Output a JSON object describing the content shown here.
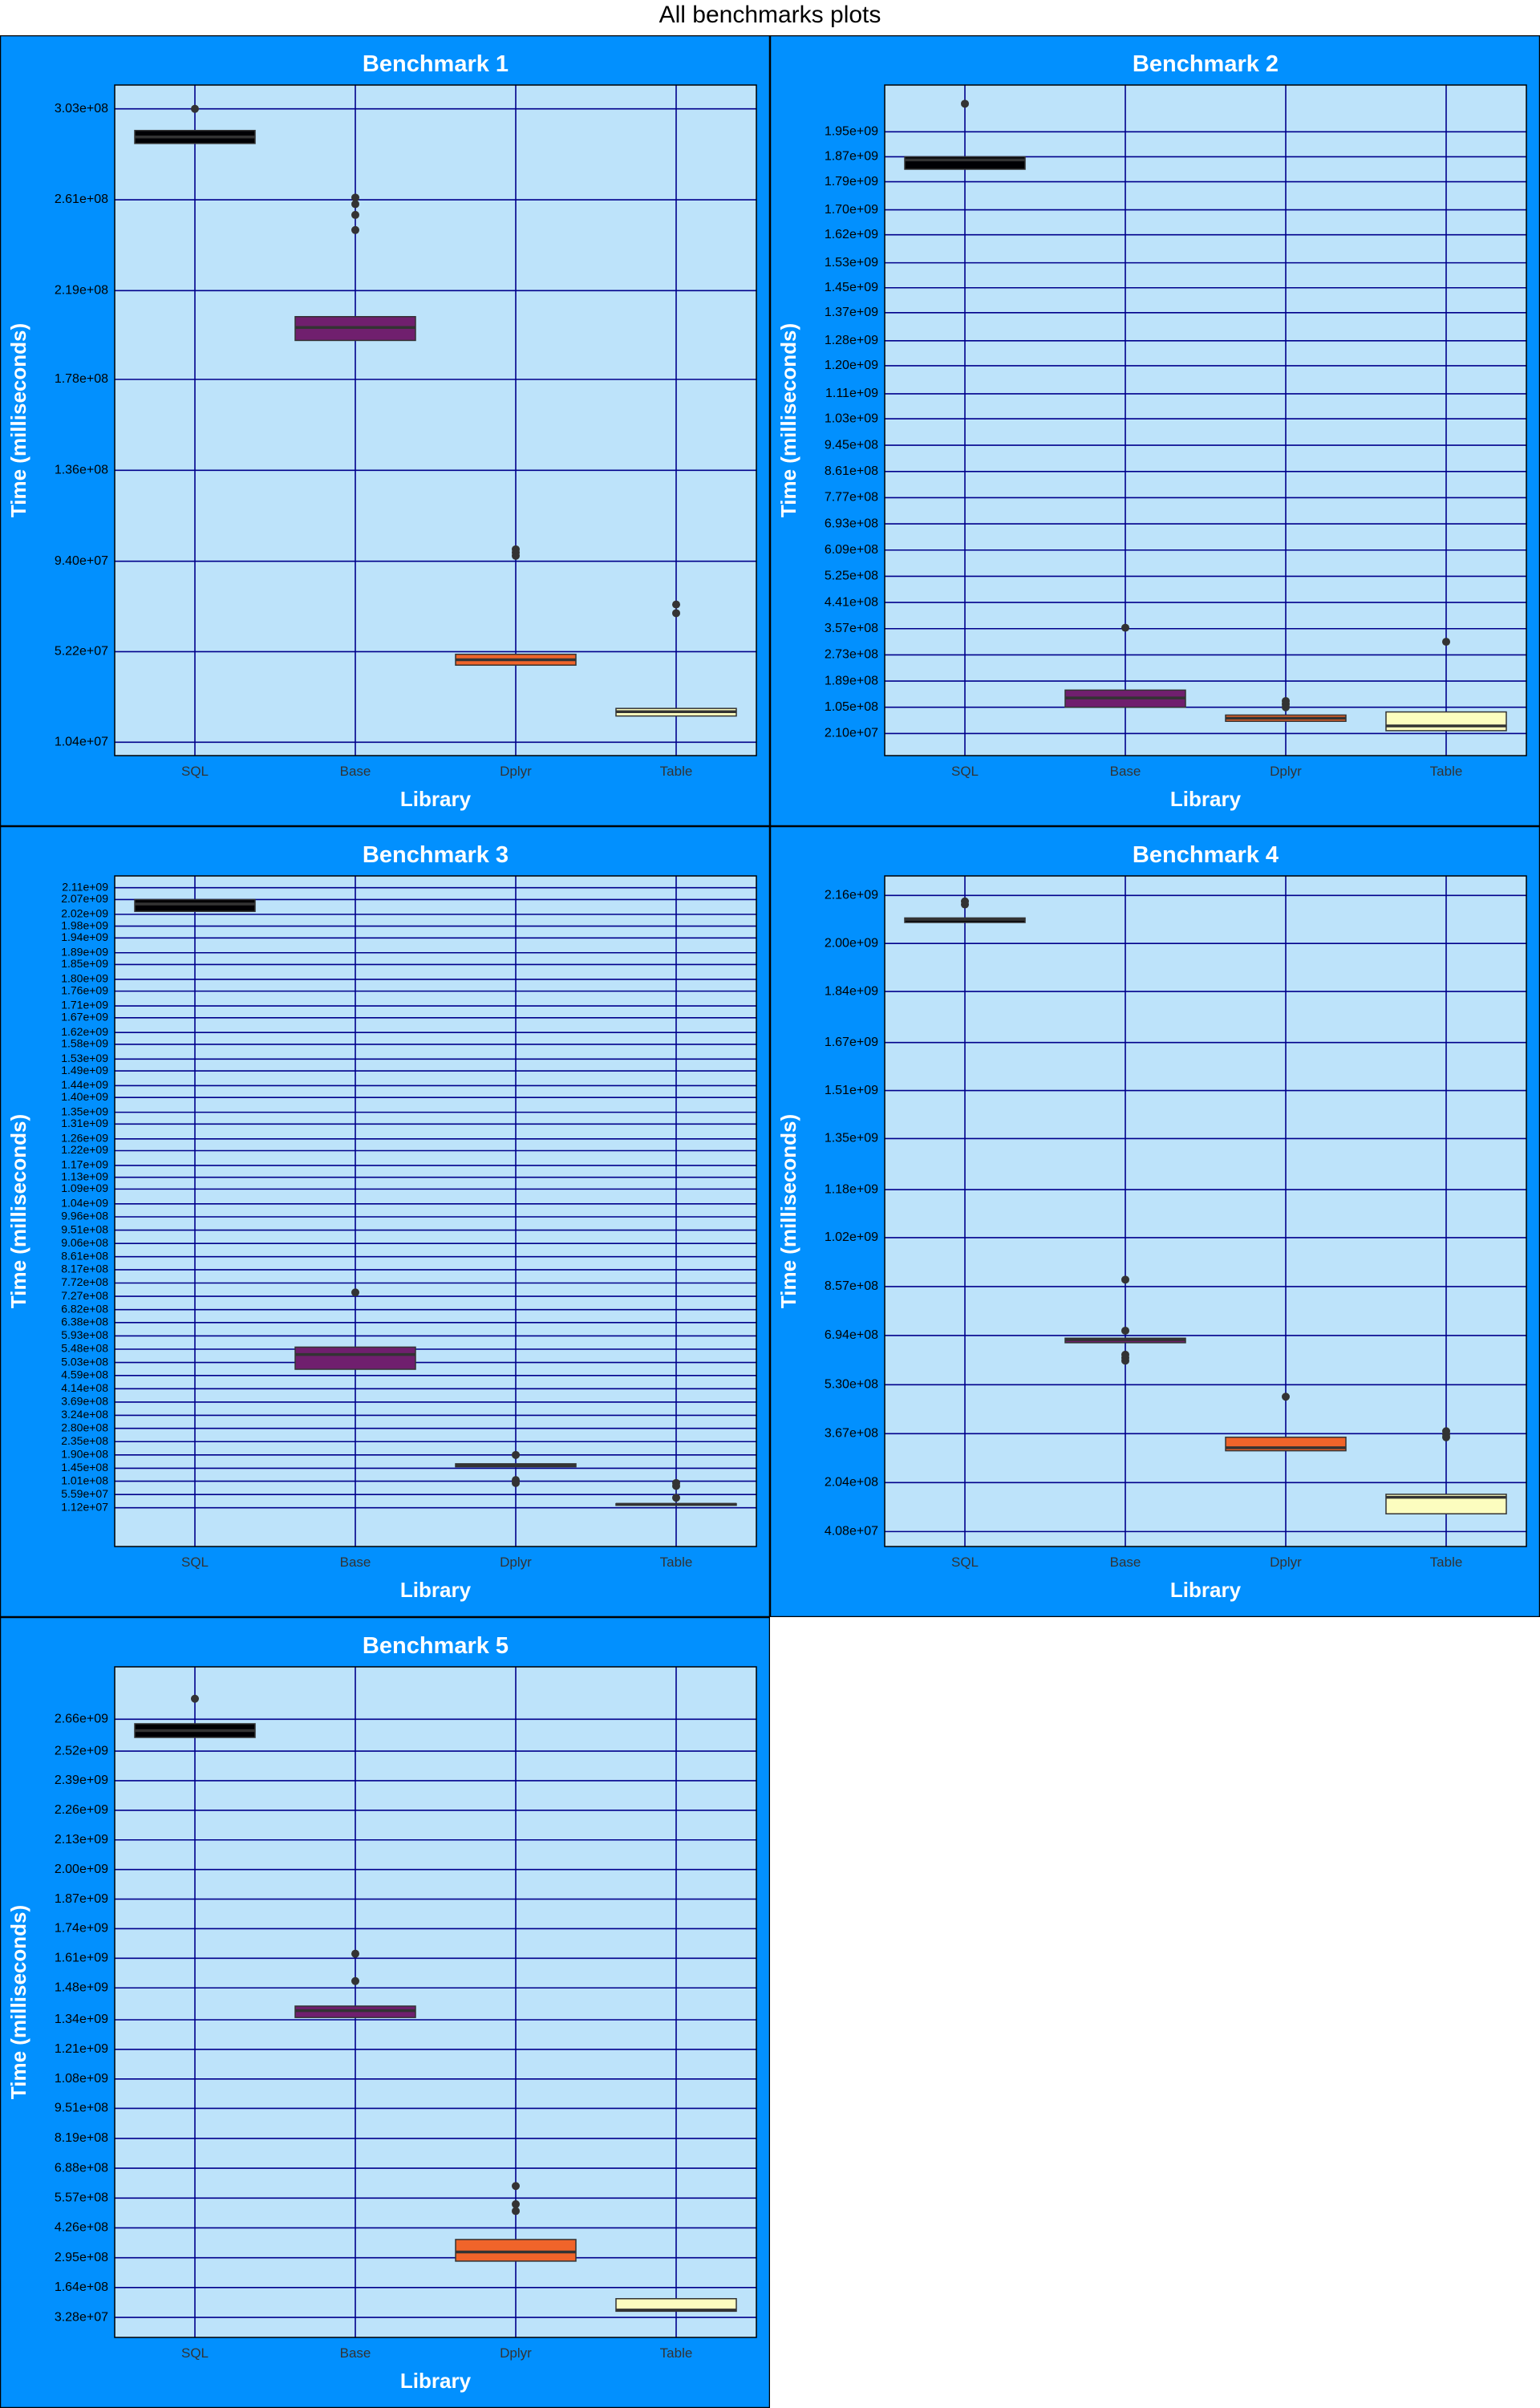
{
  "title": "All benchmarks plots",
  "colors": {
    "panel_bg": "#0290FE",
    "plot_bg": "#BDE3FA",
    "grid": "#00008B",
    "border": "#000000",
    "box_outline": "#333333",
    "axis_text": "#000000",
    "axis_title": "#FFFFFF",
    "panel_title": "#FFFFFF",
    "SQL": "#000004",
    "Base": "#701F6E",
    "Dplyr": "#F0642A",
    "Table": "#FCFDBF"
  },
  "chart_data": [
    {
      "type": "box",
      "title": "Benchmark 1",
      "xlabel": "Library",
      "ylabel": "Time (milliseconds)",
      "categories": [
        "SQL",
        "Base",
        "Dplyr",
        "Table"
      ],
      "ylim": [
        4200000.0,
        314000000.0
      ],
      "yticks": [
        {
          "label": "1.04e+07",
          "value": 10400000.0
        },
        {
          "label": "5.22e+07",
          "value": 52200000.0
        },
        {
          "label": "9.40e+07",
          "value": 94000000.0
        },
        {
          "label": "1.36e+08",
          "value": 136000000.0
        },
        {
          "label": "1.78e+08",
          "value": 178000000.0
        },
        {
          "label": "2.19e+08",
          "value": 219000000.0
        },
        {
          "label": "2.61e+08",
          "value": 261000000.0
        },
        {
          "label": "3.03e+08",
          "value": 303000000.0
        }
      ],
      "boxes": [
        {
          "category": "SQL",
          "q1": 287000000.0,
          "median": 290000000.0,
          "q3": 293000000.0,
          "outliers": [
            303000000.0
          ]
        },
        {
          "category": "Base",
          "q1": 196000000.0,
          "median": 202000000.0,
          "q3": 207000000.0,
          "outliers": [
            247000000.0,
            254000000.0,
            259000000.0,
            262000000.0
          ]
        },
        {
          "category": "Dplyr",
          "q1": 46000000.0,
          "median": 48500000.0,
          "q3": 51000000.0,
          "outliers": [
            96500000.0,
            98000000.0,
            99500000.0
          ]
        },
        {
          "category": "Table",
          "q1": 22500000.0,
          "median": 24500000.0,
          "q3": 26000000.0,
          "outliers": [
            70000000.0,
            74000000.0
          ]
        }
      ]
    },
    {
      "type": "box",
      "title": "Benchmark 2",
      "xlabel": "Library",
      "ylabel": "Time (milliseconds)",
      "categories": [
        "SQL",
        "Base",
        "Dplyr",
        "Table"
      ],
      "ylim": [
        -50000000.0,
        2100000000.0
      ],
      "yticks": [
        {
          "label": "2.10e+07",
          "value": 21000000.0
        },
        {
          "label": "1.05e+08",
          "value": 105000000.0
        },
        {
          "label": "1.89e+08",
          "value": 189000000.0
        },
        {
          "label": "2.73e+08",
          "value": 273000000.0
        },
        {
          "label": "3.57e+08",
          "value": 357000000.0
        },
        {
          "label": "4.41e+08",
          "value": 441000000.0
        },
        {
          "label": "5.25e+08",
          "value": 525000000.0
        },
        {
          "label": "6.09e+08",
          "value": 609000000.0
        },
        {
          "label": "6.93e+08",
          "value": 693000000.0
        },
        {
          "label": "7.77e+08",
          "value": 777000000.0
        },
        {
          "label": "8.61e+08",
          "value": 861000000.0
        },
        {
          "label": "9.45e+08",
          "value": 945000000.0
        },
        {
          "label": "1.03e+09",
          "value": 1030000000.0
        },
        {
          "label": "1.11e+09",
          "value": 1110000000.0
        },
        {
          "label": "1.20e+09",
          "value": 1200000000.0
        },
        {
          "label": "1.28e+09",
          "value": 1280000000.0
        },
        {
          "label": "1.37e+09",
          "value": 1370000000.0
        },
        {
          "label": "1.45e+09",
          "value": 1450000000.0
        },
        {
          "label": "1.53e+09",
          "value": 1530000000.0
        },
        {
          "label": "1.62e+09",
          "value": 1620000000.0
        },
        {
          "label": "1.70e+09",
          "value": 1700000000.0
        },
        {
          "label": "1.79e+09",
          "value": 1790000000.0
        },
        {
          "label": "1.87e+09",
          "value": 1870000000.0
        },
        {
          "label": "1.95e+09",
          "value": 1950000000.0
        }
      ],
      "boxes": [
        {
          "category": "SQL",
          "q1": 1830000000.0,
          "median": 1860000000.0,
          "q3": 1870000000.0,
          "outliers": [
            2040000000.0
          ]
        },
        {
          "category": "Base",
          "q1": 105000000.0,
          "median": 135000000.0,
          "q3": 160000000.0,
          "outliers": [
            360000000.0
          ]
        },
        {
          "category": "Dplyr",
          "q1": 60000000.0,
          "median": 70000000.0,
          "q3": 80000000.0,
          "outliers": [
            105000000.0,
            115000000.0,
            125000000.0
          ]
        },
        {
          "category": "Table",
          "q1": 30000000.0,
          "median": 45000000.0,
          "q3": 90000000.0,
          "outliers": [
            315000000.0
          ]
        }
      ]
    },
    {
      "type": "box",
      "title": "Benchmark 3",
      "xlabel": "Library",
      "ylabel": "Time (milliseconds)",
      "categories": [
        "SQL",
        "Base",
        "Dplyr",
        "Table"
      ],
      "ylim": [
        -120000000.0,
        2150000000.0
      ],
      "yticks": [
        {
          "label": "1.12e+07",
          "value": 11200000.0
        },
        {
          "label": "5.59e+07",
          "value": 55900000.0
        },
        {
          "label": "1.01e+08",
          "value": 101000000.0
        },
        {
          "label": "1.45e+08",
          "value": 145000000.0
        },
        {
          "label": "1.90e+08",
          "value": 190000000.0
        },
        {
          "label": "2.35e+08",
          "value": 235000000.0
        },
        {
          "label": "2.80e+08",
          "value": 280000000.0
        },
        {
          "label": "3.24e+08",
          "value": 324000000.0
        },
        {
          "label": "3.69e+08",
          "value": 369000000.0
        },
        {
          "label": "4.14e+08",
          "value": 414000000.0
        },
        {
          "label": "4.59e+08",
          "value": 459000000.0
        },
        {
          "label": "5.03e+08",
          "value": 503000000.0
        },
        {
          "label": "5.48e+08",
          "value": 548000000.0
        },
        {
          "label": "5.93e+08",
          "value": 593000000.0
        },
        {
          "label": "6.38e+08",
          "value": 638000000.0
        },
        {
          "label": "6.82e+08",
          "value": 682000000.0
        },
        {
          "label": "7.27e+08",
          "value": 727000000.0
        },
        {
          "label": "7.72e+08",
          "value": 772000000.0
        },
        {
          "label": "8.17e+08",
          "value": 817000000.0
        },
        {
          "label": "8.61e+08",
          "value": 861000000.0
        },
        {
          "label": "9.06e+08",
          "value": 906000000.0
        },
        {
          "label": "9.51e+08",
          "value": 951000000.0
        },
        {
          "label": "9.96e+08",
          "value": 996000000.0
        },
        {
          "label": "1.04e+09",
          "value": 1040000000.0
        },
        {
          "label": "1.09e+09",
          "value": 1090000000.0
        },
        {
          "label": "1.13e+09",
          "value": 1130000000.0
        },
        {
          "label": "1.17e+09",
          "value": 1170000000.0
        },
        {
          "label": "1.22e+09",
          "value": 1220000000.0
        },
        {
          "label": "1.26e+09",
          "value": 1260000000.0
        },
        {
          "label": "1.31e+09",
          "value": 1310000000.0
        },
        {
          "label": "1.35e+09",
          "value": 1350000000.0
        },
        {
          "label": "1.40e+09",
          "value": 1400000000.0
        },
        {
          "label": "1.44e+09",
          "value": 1440000000.0
        },
        {
          "label": "1.49e+09",
          "value": 1490000000.0
        },
        {
          "label": "1.53e+09",
          "value": 1530000000.0
        },
        {
          "label": "1.58e+09",
          "value": 1580000000.0
        },
        {
          "label": "1.62e+09",
          "value": 1620000000.0
        },
        {
          "label": "1.67e+09",
          "value": 1670000000.0
        },
        {
          "label": "1.71e+09",
          "value": 1710000000.0
        },
        {
          "label": "1.76e+09",
          "value": 1760000000.0
        },
        {
          "label": "1.80e+09",
          "value": 1800000000.0
        },
        {
          "label": "1.85e+09",
          "value": 1850000000.0
        },
        {
          "label": "1.89e+09",
          "value": 1890000000.0
        },
        {
          "label": "1.94e+09",
          "value": 1940000000.0
        },
        {
          "label": "1.98e+09",
          "value": 1980000000.0
        },
        {
          "label": "2.02e+09",
          "value": 2020000000.0
        },
        {
          "label": "2.07e+09",
          "value": 2070000000.0
        },
        {
          "label": "2.11e+09",
          "value": 2110000000.0
        }
      ],
      "boxes": [
        {
          "category": "SQL",
          "q1": 2030000000.0,
          "median": 2055000000.0,
          "q3": 2070000000.0,
          "outliers": []
        },
        {
          "category": "Base",
          "q1": 480000000.0,
          "median": 530000000.0,
          "q3": 555000000.0,
          "outliers": [
            740000000.0
          ]
        },
        {
          "category": "Dplyr",
          "q1": 150000000.0,
          "median": 155000000.0,
          "q3": 160000000.0,
          "outliers": [
            95000000.0,
            105000000.0,
            190000000.0
          ]
        },
        {
          "category": "Table",
          "q1": 20000000.0,
          "median": 23000000.0,
          "q3": 25000000.0,
          "outliers": [
            45000000.0,
            85000000.0,
            95000000.0
          ]
        }
      ]
    },
    {
      "type": "box",
      "title": "Benchmark 4",
      "xlabel": "Library",
      "ylabel": "Time (milliseconds)",
      "categories": [
        "SQL",
        "Base",
        "Dplyr",
        "Table"
      ],
      "ylim": [
        -9000000.0,
        2225000000.0
      ],
      "yticks": [
        {
          "label": "4.08e+07",
          "value": 40800000.0
        },
        {
          "label": "2.04e+08",
          "value": 204000000.0
        },
        {
          "label": "3.67e+08",
          "value": 367000000.0
        },
        {
          "label": "5.30e+08",
          "value": 530000000.0
        },
        {
          "label": "6.94e+08",
          "value": 694000000.0
        },
        {
          "label": "8.57e+08",
          "value": 857000000.0
        },
        {
          "label": "1.02e+09",
          "value": 1020000000.0
        },
        {
          "label": "1.18e+09",
          "value": 1180000000.0
        },
        {
          "label": "1.35e+09",
          "value": 1350000000.0
        },
        {
          "label": "1.51e+09",
          "value": 1510000000.0
        },
        {
          "label": "1.67e+09",
          "value": 1670000000.0
        },
        {
          "label": "1.84e+09",
          "value": 1840000000.0
        },
        {
          "label": "2.00e+09",
          "value": 2000000000.0
        },
        {
          "label": "2.16e+09",
          "value": 2160000000.0
        }
      ],
      "boxes": [
        {
          "category": "SQL",
          "q1": 2070000000.0,
          "median": 2080000000.0,
          "q3": 2085000000.0,
          "outliers": [
            2130000000.0,
            2140000000.0
          ]
        },
        {
          "category": "Base",
          "q1": 670000000.0,
          "median": 680000000.0,
          "q3": 685000000.0,
          "outliers": [
            610000000.0,
            620000000.0,
            630000000.0,
            710000000.0,
            880000000.0
          ]
        },
        {
          "category": "Dplyr",
          "q1": 310000000.0,
          "median": 320000000.0,
          "q3": 355000000.0,
          "outliers": [
            490000000.0
          ]
        },
        {
          "category": "Table",
          "q1": 100000000.0,
          "median": 155000000.0,
          "q3": 165000000.0,
          "outliers": [
            355000000.0,
            365000000.0,
            375000000.0
          ]
        }
      ]
    },
    {
      "type": "box",
      "title": "Benchmark 5",
      "xlabel": "Library",
      "ylabel": "Time (milliseconds)",
      "categories": [
        "SQL",
        "Base",
        "Dplyr",
        "Table"
      ],
      "ylim": [
        -55000000.0,
        2890000000.0
      ],
      "yticks": [
        {
          "label": "3.28e+07",
          "value": 32800000.0
        },
        {
          "label": "1.64e+08",
          "value": 164000000.0
        },
        {
          "label": "2.95e+08",
          "value": 295000000.0
        },
        {
          "label": "4.26e+08",
          "value": 426000000.0
        },
        {
          "label": "5.57e+08",
          "value": 557000000.0
        },
        {
          "label": "6.88e+08",
          "value": 688000000.0
        },
        {
          "label": "8.19e+08",
          "value": 819000000.0
        },
        {
          "label": "9.51e+08",
          "value": 951000000.0
        },
        {
          "label": "1.08e+09",
          "value": 1080000000.0
        },
        {
          "label": "1.21e+09",
          "value": 1210000000.0
        },
        {
          "label": "1.34e+09",
          "value": 1340000000.0
        },
        {
          "label": "1.48e+09",
          "value": 1480000000.0
        },
        {
          "label": "1.61e+09",
          "value": 1610000000.0
        },
        {
          "label": "1.74e+09",
          "value": 1740000000.0
        },
        {
          "label": "1.87e+09",
          "value": 1870000000.0
        },
        {
          "label": "2.00e+09",
          "value": 2000000000.0
        },
        {
          "label": "2.13e+09",
          "value": 2130000000.0
        },
        {
          "label": "2.26e+09",
          "value": 2260000000.0
        },
        {
          "label": "2.39e+09",
          "value": 2390000000.0
        },
        {
          "label": "2.52e+09",
          "value": 2520000000.0
        },
        {
          "label": "2.66e+09",
          "value": 2660000000.0
        }
      ],
      "boxes": [
        {
          "category": "SQL",
          "q1": 2580000000.0,
          "median": 2610000000.0,
          "q3": 2640000000.0,
          "outliers": [
            2750000000.0
          ]
        },
        {
          "category": "Base",
          "q1": 1350000000.0,
          "median": 1380000000.0,
          "q3": 1400000000.0,
          "outliers": [
            1510000000.0,
            1630000000.0
          ]
        },
        {
          "category": "Dplyr",
          "q1": 280000000.0,
          "median": 320000000.0,
          "q3": 375000000.0,
          "outliers": [
            500000000.0,
            530000000.0,
            610000000.0
          ]
        },
        {
          "category": "Table",
          "q1": 60000000.0,
          "median": 65000000.0,
          "q3": 115000000.0,
          "outliers": []
        }
      ]
    }
  ]
}
